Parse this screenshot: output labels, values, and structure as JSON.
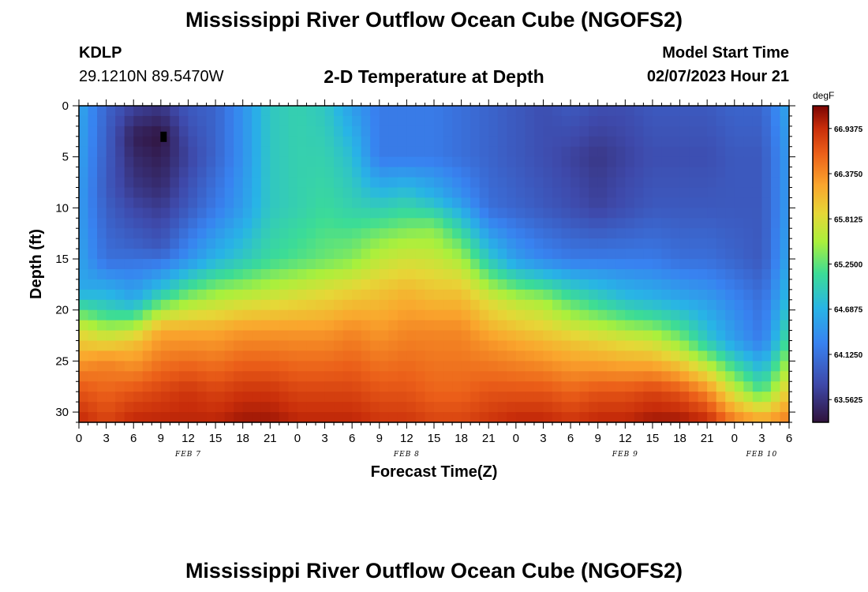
{
  "title": "Mississippi River Outflow Ocean Cube (NGOFS2)",
  "station": {
    "id": "KDLP",
    "coords": "29.1210N  89.5470W"
  },
  "subtitle": "2-D Temperature at Depth",
  "model_start": {
    "label": "Model Start Time",
    "value": "02/07/2023 Hour 21"
  },
  "footer_title": "Mississippi River Outflow Ocean Cube (NGOFS2)",
  "chart_data": {
    "type": "heatmap",
    "xlabel": "Forecast Time(Z)",
    "ylabel": "Depth (ft)",
    "x_ticks": [
      "0",
      "3",
      "6",
      "9",
      "12",
      "15",
      "18",
      "21",
      "0",
      "3",
      "6",
      "9",
      "12",
      "15",
      "18",
      "21",
      "0",
      "3",
      "6",
      "9",
      "12",
      "15",
      "18",
      "21",
      "0",
      "3",
      "6"
    ],
    "day_labels": [
      {
        "label": "FEB 7",
        "hour": 12
      },
      {
        "label": "FEB 8",
        "hour": 36
      },
      {
        "label": "FEB 9",
        "hour": 60
      },
      {
        "label": "FEB 10",
        "hour": 75
      }
    ],
    "xlim": [
      0,
      78
    ],
    "ylim": [
      31,
      0
    ],
    "y_ticks": [
      0,
      5,
      10,
      15,
      20,
      25,
      30
    ],
    "colorbar": {
      "unit": "degF",
      "min": 63.28,
      "max": 67.22,
      "labels": [
        "66.9375",
        "66.3750",
        "65.8125",
        "65.2500",
        "64.6875",
        "64.1250",
        "63.5625"
      ],
      "label_values": [
        66.9375,
        66.375,
        65.8125,
        65.25,
        64.6875,
        64.125,
        63.5625
      ]
    },
    "marker": {
      "hour": 9.3,
      "depth": 3
    },
    "temperature_profiles": [
      {
        "hour": 0,
        "depths": [
          0,
          10,
          18,
          22,
          27,
          31
        ],
        "temps": [
          64.6,
          64.5,
          64.6,
          65.8,
          66.6,
          67.0
        ]
      },
      {
        "hour": 3,
        "depths": [
          0,
          8,
          15,
          20,
          25,
          31
        ],
        "temps": [
          64.0,
          63.9,
          64.1,
          65.0,
          66.4,
          66.8
        ]
      },
      {
        "hour": 6,
        "depths": [
          0,
          3,
          8,
          14,
          19,
          23,
          28,
          31
        ],
        "temps": [
          63.7,
          63.4,
          63.6,
          64.0,
          64.6,
          66.0,
          66.7,
          67.0
        ]
      },
      {
        "hour": 9,
        "depths": [
          0,
          3,
          8,
          14,
          18,
          22,
          28,
          31
        ],
        "temps": [
          63.6,
          63.3,
          63.5,
          63.9,
          64.8,
          66.2,
          66.8,
          67.0
        ]
      },
      {
        "hour": 12,
        "depths": [
          0,
          5,
          10,
          15,
          18,
          22,
          28,
          31
        ],
        "temps": [
          63.9,
          63.7,
          63.9,
          64.4,
          65.2,
          66.2,
          66.9,
          67.0
        ]
      },
      {
        "hour": 15,
        "depths": [
          0,
          5,
          10,
          15,
          18,
          22,
          28,
          31
        ],
        "temps": [
          64.0,
          64.0,
          64.2,
          64.7,
          65.4,
          66.2,
          66.8,
          67.0
        ]
      },
      {
        "hour": 18,
        "depths": [
          0,
          5,
          10,
          15,
          18,
          22,
          28,
          31
        ],
        "temps": [
          64.4,
          64.4,
          64.5,
          64.9,
          65.5,
          66.3,
          66.9,
          67.1
        ]
      },
      {
        "hour": 21,
        "depths": [
          0,
          5,
          10,
          15,
          18,
          22,
          28,
          31
        ],
        "temps": [
          64.9,
          64.9,
          64.9,
          65.1,
          65.6,
          66.3,
          66.9,
          67.1
        ]
      },
      {
        "hour": 24,
        "depths": [
          0,
          5,
          10,
          15,
          18,
          22,
          28,
          31
        ],
        "temps": [
          65.0,
          65.0,
          65.0,
          65.2,
          65.7,
          66.3,
          66.8,
          67.0
        ]
      },
      {
        "hour": 27,
        "depths": [
          0,
          5,
          10,
          15,
          18,
          22,
          28,
          31
        ],
        "temps": [
          64.9,
          65.0,
          65.1,
          65.3,
          65.8,
          66.3,
          66.8,
          67.0
        ]
      },
      {
        "hour": 30,
        "depths": [
          0,
          5,
          10,
          15,
          18,
          22,
          28,
          31
        ],
        "temps": [
          64.5,
          64.8,
          65.0,
          65.4,
          65.9,
          66.4,
          66.8,
          67.0
        ]
      },
      {
        "hour": 33,
        "depths": [
          0,
          5,
          9,
          13,
          18,
          22,
          28,
          31
        ],
        "temps": [
          64.2,
          64.2,
          64.8,
          65.4,
          66.0,
          66.3,
          66.7,
          66.9
        ]
      },
      {
        "hour": 36,
        "depths": [
          0,
          5,
          9,
          13,
          18,
          22,
          28,
          31
        ],
        "temps": [
          64.2,
          64.2,
          64.9,
          65.5,
          66.1,
          66.4,
          66.7,
          66.9
        ]
      },
      {
        "hour": 39,
        "depths": [
          0,
          5,
          9,
          12,
          18,
          22,
          28,
          31
        ],
        "temps": [
          64.2,
          64.2,
          64.7,
          65.4,
          66.0,
          66.4,
          66.6,
          66.8
        ]
      },
      {
        "hour": 42,
        "depths": [
          0,
          5,
          9,
          13,
          18,
          22,
          28,
          31
        ],
        "temps": [
          64.1,
          64.1,
          64.4,
          65.2,
          66.0,
          66.4,
          66.6,
          66.8
        ]
      },
      {
        "hour": 45,
        "depths": [
          0,
          5,
          10,
          15,
          19,
          23,
          28,
          31
        ],
        "temps": [
          64.0,
          64.0,
          64.1,
          64.9,
          65.8,
          66.3,
          66.7,
          66.9
        ]
      },
      {
        "hour": 48,
        "depths": [
          0,
          5,
          10,
          15,
          19,
          23,
          28,
          31
        ],
        "temps": [
          63.9,
          63.9,
          64.0,
          64.5,
          65.6,
          66.2,
          66.7,
          67.0
        ]
      },
      {
        "hour": 51,
        "depths": [
          0,
          5,
          10,
          15,
          19,
          23,
          28,
          31
        ],
        "temps": [
          63.8,
          63.8,
          63.9,
          64.3,
          65.5,
          66.1,
          66.7,
          67.0
        ]
      },
      {
        "hour": 54,
        "depths": [
          0,
          5,
          10,
          15,
          19,
          23,
          28,
          31
        ],
        "temps": [
          63.9,
          63.7,
          63.8,
          64.2,
          65.2,
          66.0,
          66.6,
          66.9
        ]
      },
      {
        "hour": 57,
        "depths": [
          0,
          5,
          10,
          15,
          19,
          23,
          28,
          31
        ],
        "temps": [
          63.8,
          63.6,
          63.7,
          64.2,
          65.0,
          65.9,
          66.7,
          67.0
        ]
      },
      {
        "hour": 60,
        "depths": [
          0,
          5,
          10,
          15,
          19,
          23,
          28,
          31
        ],
        "temps": [
          63.8,
          63.7,
          63.8,
          64.2,
          64.8,
          65.8,
          66.7,
          67.0
        ]
      },
      {
        "hour": 63,
        "depths": [
          0,
          5,
          10,
          15,
          19,
          23,
          28,
          31
        ],
        "temps": [
          63.9,
          63.8,
          63.9,
          64.2,
          64.7,
          65.7,
          66.8,
          67.1
        ]
      },
      {
        "hour": 66,
        "depths": [
          0,
          5,
          10,
          15,
          19,
          23,
          28,
          31
        ],
        "temps": [
          63.9,
          63.8,
          63.9,
          64.1,
          64.6,
          65.4,
          66.7,
          67.1
        ]
      },
      {
        "hour": 69,
        "depths": [
          0,
          5,
          10,
          15,
          19,
          23,
          28,
          31
        ],
        "temps": [
          63.9,
          63.8,
          63.9,
          64.1,
          64.5,
          64.9,
          66.4,
          67.0
        ]
      },
      {
        "hour": 72,
        "depths": [
          0,
          5,
          10,
          15,
          19,
          23,
          28,
          31
        ],
        "temps": [
          64.0,
          63.9,
          63.9,
          64.0,
          64.3,
          64.5,
          65.7,
          66.5
        ]
      },
      {
        "hour": 75,
        "depths": [
          0,
          5,
          10,
          15,
          19,
          23,
          28,
          31
        ],
        "temps": [
          64.0,
          63.9,
          63.9,
          63.9,
          64.1,
          64.2,
          65.2,
          66.3
        ]
      },
      {
        "hour": 78,
        "depths": [
          0,
          5,
          10,
          15,
          19,
          23,
          28,
          31
        ],
        "temps": [
          64.6,
          64.5,
          64.5,
          64.6,
          64.8,
          65.2,
          66.0,
          66.5
        ]
      }
    ]
  }
}
